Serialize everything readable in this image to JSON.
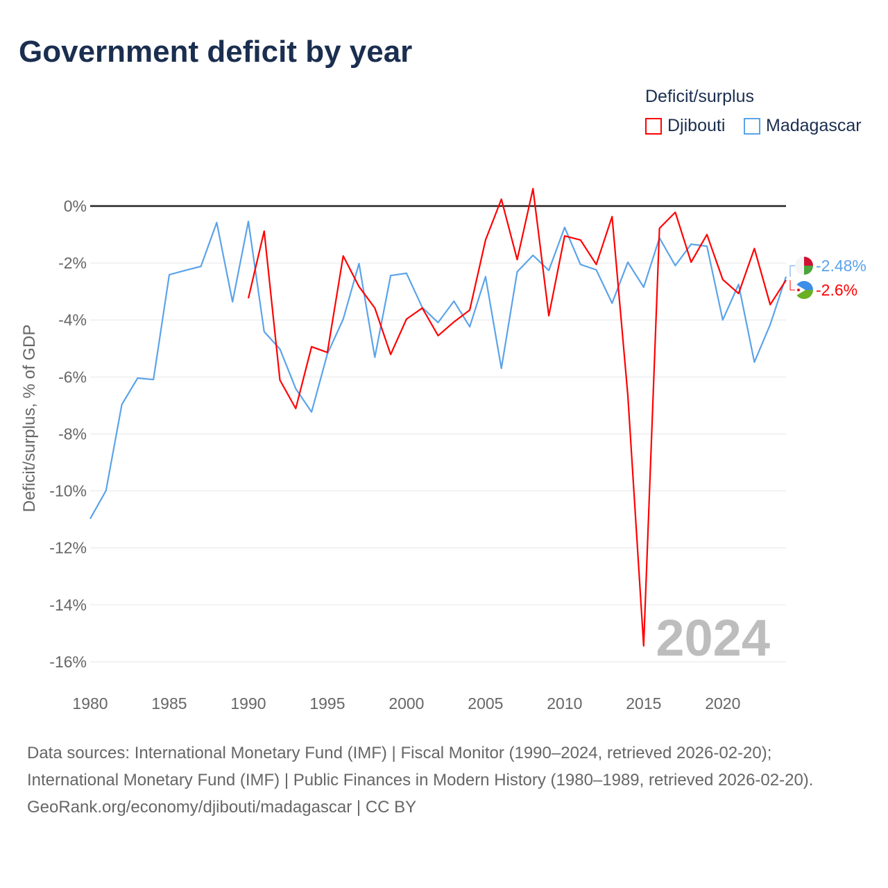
{
  "title": "Government deficit by year",
  "legend": {
    "title": "Deficit/surplus",
    "items": [
      {
        "name": "Djibouti",
        "color": "#ff0000"
      },
      {
        "name": "Madagascar",
        "color": "#5ba3ea"
      }
    ]
  },
  "year_watermark": "2024",
  "footer": {
    "sources": "Data sources: International Monetary Fund (IMF) | Fiscal Monitor (1990–2024, retrieved 2026-02-20); International Monetary Fund (IMF) | Public Finances in Modern History (1980–1989, retrieved 2026-02-20).",
    "credit": "GeoRank.org/economy/djibouti/madagascar | CC BY"
  },
  "chart_data": {
    "type": "line",
    "title": "Government deficit by year",
    "xlabel": "",
    "ylabel": "Deficit/surplus, % of GDP",
    "xlim": [
      1980,
      2024
    ],
    "ylim": [
      -16,
      0.8
    ],
    "xticks": [
      1980,
      1985,
      1990,
      1995,
      2000,
      2005,
      2010,
      2015,
      2020
    ],
    "xtick_labels": [
      "1980",
      "1985",
      "1990",
      "1995",
      "2000",
      "2005",
      "2010",
      "2015",
      "2020"
    ],
    "yticks": [
      0,
      -2,
      -4,
      -6,
      -8,
      -10,
      -12,
      -14,
      -16
    ],
    "ytick_labels": [
      "0%",
      "-2%",
      "-4%",
      "-6%",
      "-8%",
      "-10%",
      "-12%",
      "-14%",
      "-16%"
    ],
    "grid": true,
    "legend_position": "top-right",
    "series": [
      {
        "name": "Djibouti",
        "color": "#ff0000",
        "end_label": "-2.6%",
        "start": 1990,
        "values": [
          -3.24,
          -0.88,
          -6.11,
          -7.11,
          -4.94,
          -5.14,
          -1.75,
          -2.83,
          -3.58,
          -5.21,
          -3.97,
          -3.58,
          -4.55,
          -4.07,
          -3.65,
          -1.19,
          0.24,
          -1.88,
          0.61,
          -3.85,
          -1.05,
          -1.19,
          -2.05,
          -0.37,
          -6.65,
          -15.44,
          -0.78,
          -0.22,
          -1.97,
          -1.0,
          -2.58,
          -3.07,
          -1.49,
          -3.46,
          -2.6
        ]
      },
      {
        "name": "Madagascar",
        "color": "#5ba3ea",
        "end_label": "-2.48%",
        "start": 1980,
        "values": [
          -10.98,
          -9.99,
          -6.97,
          -6.04,
          -6.09,
          -2.41,
          -2.26,
          -2.12,
          -0.58,
          -3.36,
          -0.54,
          -4.41,
          -5.02,
          -6.41,
          -7.23,
          -5.19,
          -3.97,
          -2.02,
          -5.31,
          -2.44,
          -2.36,
          -3.56,
          -4.09,
          -3.34,
          -4.24,
          -2.48,
          -5.7,
          -2.31,
          -1.73,
          -2.26,
          -0.75,
          -2.05,
          -2.24,
          -3.41,
          -1.97,
          -2.85,
          -1.12,
          -2.09,
          -1.34,
          -1.41,
          -4.0,
          -2.75,
          -5.48,
          -4.16,
          -2.48
        ]
      }
    ]
  }
}
